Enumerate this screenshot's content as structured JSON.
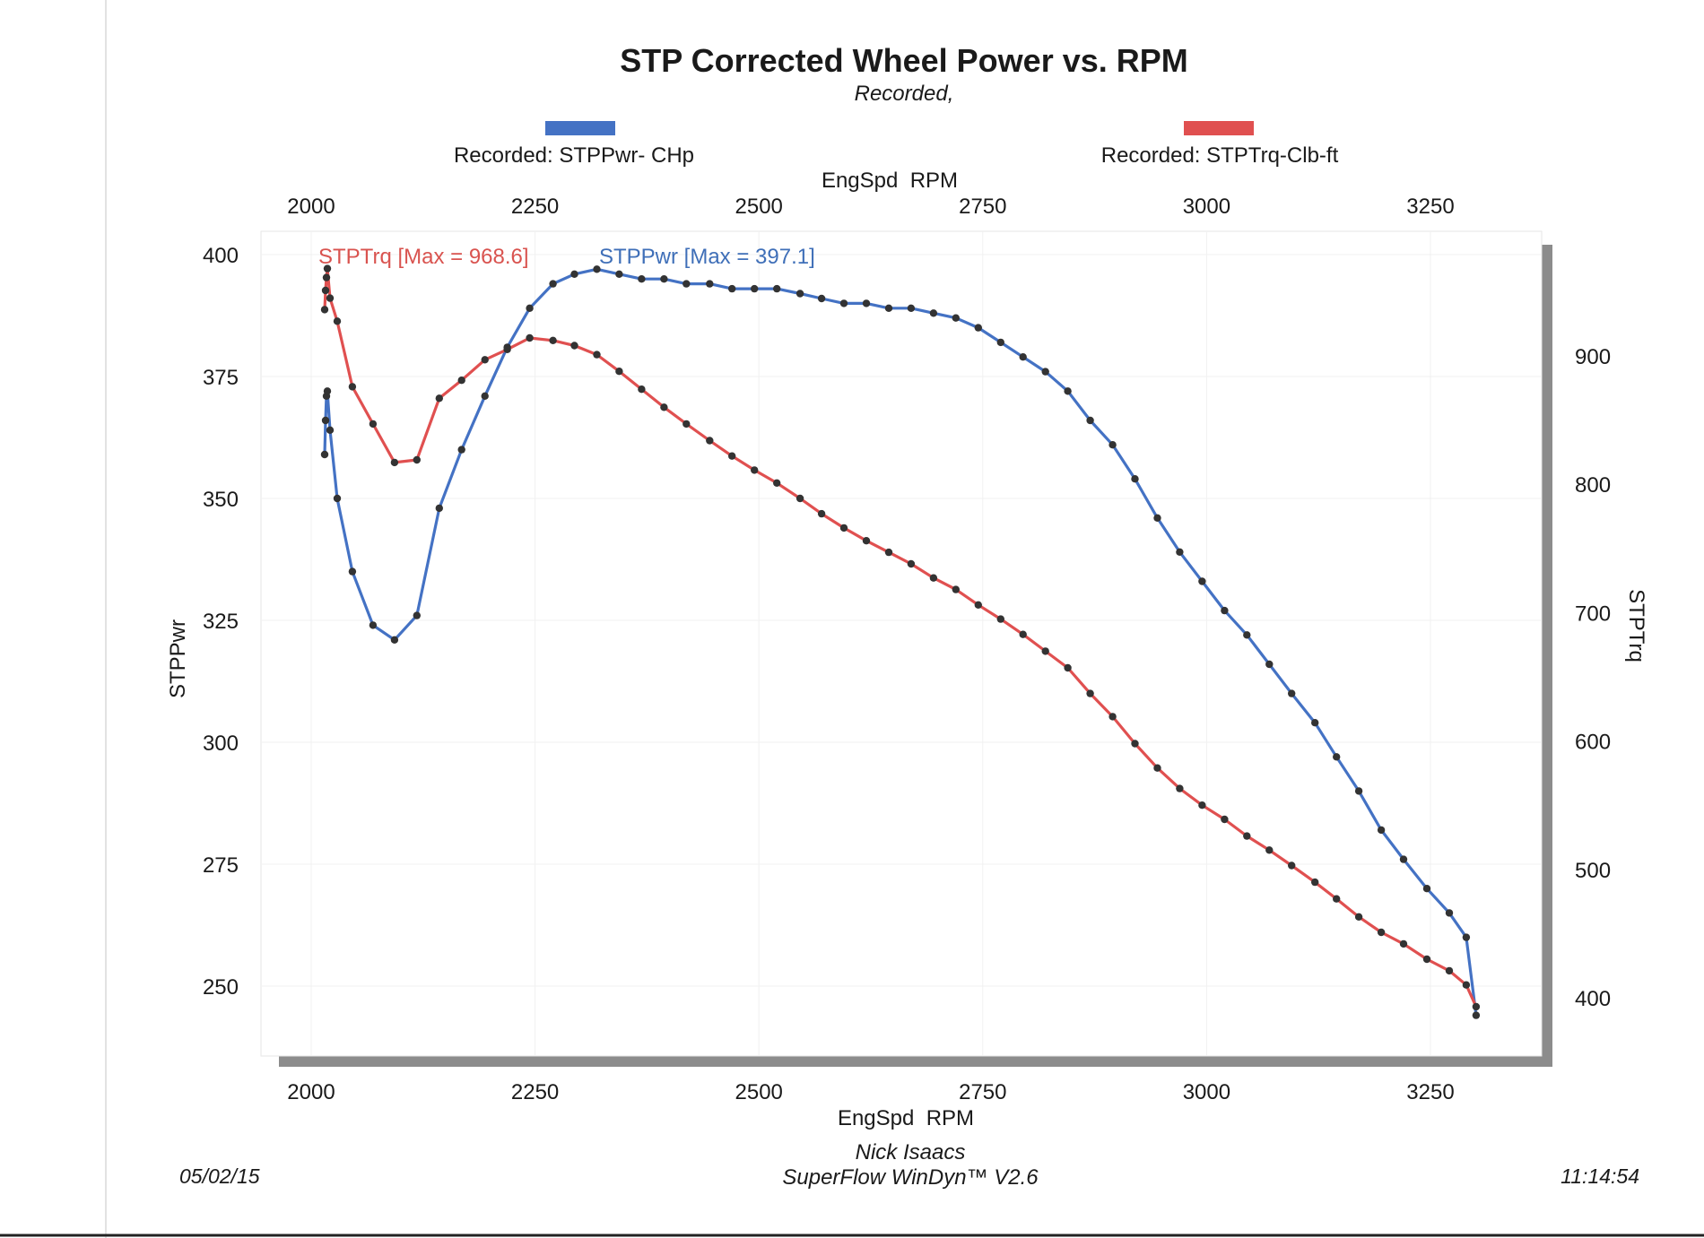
{
  "chart_data": {
    "type": "line",
    "title": "STP Corrected Wheel Power vs. RPM",
    "subtitle": "Recorded,",
    "legend": [
      {
        "label": "Recorded: STPPwr- CHp",
        "color": "#4472c4"
      },
      {
        "label": "Recorded: STPTrq-Clb-ft",
        "color": "#e05050"
      }
    ],
    "x_axis": {
      "label": "EngSpd  RPM",
      "ticks": [
        2000,
        2250,
        2500,
        2750,
        3000,
        3250
      ],
      "tick_labels": [
        "2000",
        "2250",
        "2500",
        "2750",
        "3000",
        "3250"
      ],
      "range": [
        2000,
        3350
      ]
    },
    "y_left": {
      "label": "STPPwr",
      "ticks": [
        250,
        275,
        300,
        325,
        350,
        375,
        400
      ],
      "tick_labels": [
        "250",
        "275",
        "300",
        "325",
        "350",
        "375",
        "400"
      ],
      "range": [
        240,
        400
      ]
    },
    "y_right": {
      "label": "STPTrq",
      "ticks": [
        400,
        500,
        600,
        700,
        800,
        900
      ],
      "tick_labels": [
        "400",
        "500",
        "600",
        "700",
        "800",
        "900"
      ],
      "range": [
        383,
        982
      ]
    },
    "annotations": {
      "torque_max": "STPTrq [Max = 968.6]",
      "power_max": "STPPwr [Max = 397.1]"
    },
    "series": [
      {
        "name": "STPPwr",
        "axis": "left",
        "color": "#4472c4",
        "x": [
          2015,
          2016,
          2017,
          2018,
          2021,
          2029,
          2046,
          2069,
          2093,
          2118,
          2143,
          2168,
          2194,
          2219,
          2244,
          2270,
          2294,
          2319,
          2344,
          2369,
          2394,
          2419,
          2445,
          2470,
          2495,
          2520,
          2546,
          2570,
          2595,
          2620,
          2645,
          2670,
          2695,
          2720,
          2745,
          2770,
          2795,
          2820,
          2845,
          2870,
          2895,
          2920,
          2945,
          2970,
          2995,
          3020,
          3045,
          3070,
          3095,
          3121,
          3145,
          3170,
          3195,
          3220,
          3246,
          3271,
          3290,
          3301
        ],
        "y": [
          359,
          366,
          371,
          372,
          364,
          350,
          335,
          324,
          321,
          326,
          348,
          360,
          371,
          381,
          389,
          394,
          396,
          397,
          396,
          395,
          395,
          394,
          394,
          393,
          393,
          393,
          392,
          391,
          390,
          390,
          389,
          389,
          388,
          387,
          385,
          382,
          379,
          376,
          372,
          366,
          361,
          354,
          346,
          339,
          333,
          327,
          322,
          316,
          310,
          304,
          297,
          290,
          282,
          276,
          270,
          265,
          260,
          244
        ]
      },
      {
        "name": "STPTrq",
        "axis": "right",
        "color": "#e05050",
        "x": [
          2015,
          2016,
          2017,
          2018,
          2021,
          2029,
          2046,
          2069,
          2093,
          2118,
          2143,
          2168,
          2194,
          2219,
          2244,
          2270,
          2294,
          2319,
          2344,
          2369,
          2394,
          2419,
          2445,
          2470,
          2495,
          2520,
          2546,
          2570,
          2595,
          2620,
          2645,
          2670,
          2695,
          2720,
          2745,
          2770,
          2795,
          2820,
          2845,
          2870,
          2895,
          2920,
          2945,
          2970,
          2995,
          3020,
          3045,
          3070,
          3095,
          3121,
          3145,
          3170,
          3195,
          3220,
          3246,
          3271,
          3290,
          3301
        ],
        "y": [
          936,
          951,
          961,
          968,
          945,
          927,
          876,
          847,
          817,
          819,
          867,
          881,
          897,
          905,
          914,
          912,
          908,
          901,
          888,
          874,
          860,
          847,
          834,
          822,
          811,
          801,
          789,
          777,
          766,
          756,
          747,
          738,
          727,
          718,
          706,
          695,
          683,
          670,
          657,
          637,
          619,
          598,
          579,
          563,
          550,
          539,
          526,
          515,
          503,
          490,
          477,
          463,
          451,
          442,
          430,
          421,
          410,
          393
        ]
      }
    ],
    "footer": {
      "date": "05/02/15",
      "author": "Nick Isaacs",
      "software": "SuperFlow WinDyn™ V2.6",
      "time": "11:14:54"
    }
  }
}
